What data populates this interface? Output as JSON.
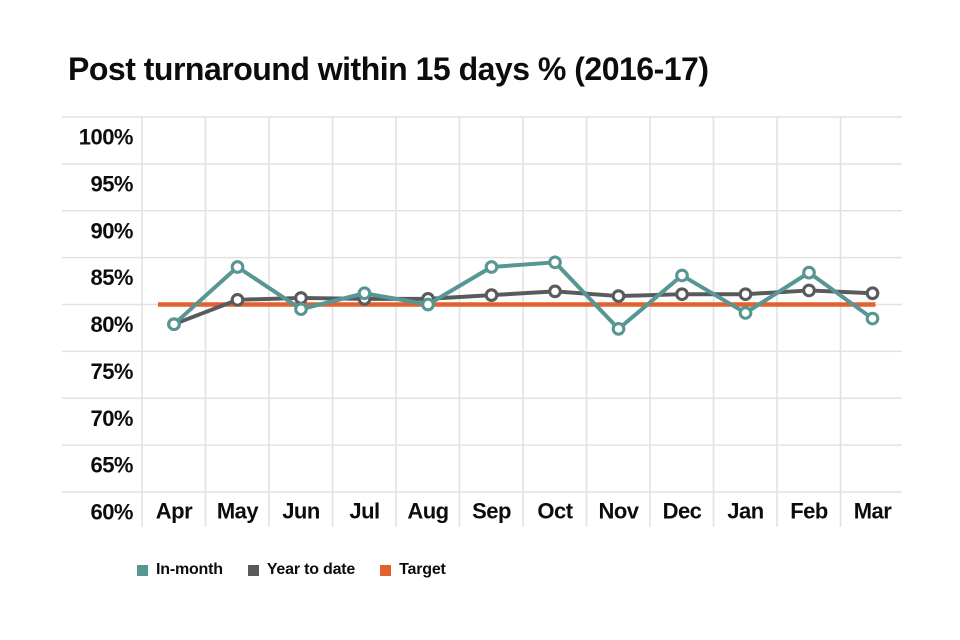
{
  "page": {
    "title": "Post turnaround within 15 days % (2016-17)"
  },
  "colors": {
    "in_month": "#579692",
    "year_to_date": "#595a5c",
    "target": "#e0622e",
    "gridline": "#e2e2e2",
    "text": "#0b0c0c",
    "marker_fill": "#ffffff"
  },
  "legend": [
    {
      "label": "In-month",
      "color": "#579692"
    },
    {
      "label": "Year to date",
      "color": "#595a5c"
    },
    {
      "label": "Target",
      "color": "#e0622e"
    }
  ],
  "chart_data": {
    "type": "line",
    "title": "Post turnaround within 15 days % (2016-17)",
    "categories": [
      "Apr",
      "May",
      "Jun",
      "Jul",
      "Aug",
      "Sep",
      "Oct",
      "Nov",
      "Dec",
      "Jan",
      "Feb",
      "Mar"
    ],
    "series": [
      {
        "name": "In-month",
        "color": "#579692",
        "marker": "circle",
        "values": [
          77.9,
          84.0,
          79.5,
          81.2,
          80.0,
          84.0,
          84.5,
          77.4,
          83.1,
          79.1,
          83.4,
          78.5
        ]
      },
      {
        "name": "Year to date",
        "color": "#595a5c",
        "marker": "circle",
        "values": [
          77.9,
          80.5,
          80.7,
          80.6,
          80.6,
          81.0,
          81.4,
          80.9,
          81.1,
          81.1,
          81.5,
          81.2
        ]
      }
    ],
    "target_line": {
      "name": "Target",
      "color": "#e0622e",
      "value": 80
    },
    "xlabel": "",
    "ylabel": "",
    "ylim": [
      60,
      100
    ],
    "ytick_step": 5,
    "ytick_labels": [
      "100%",
      "95%",
      "90%",
      "85%",
      "80%",
      "75%",
      "70%",
      "65%",
      "60%"
    ],
    "grid": "both",
    "legend_position": "bottom"
  }
}
